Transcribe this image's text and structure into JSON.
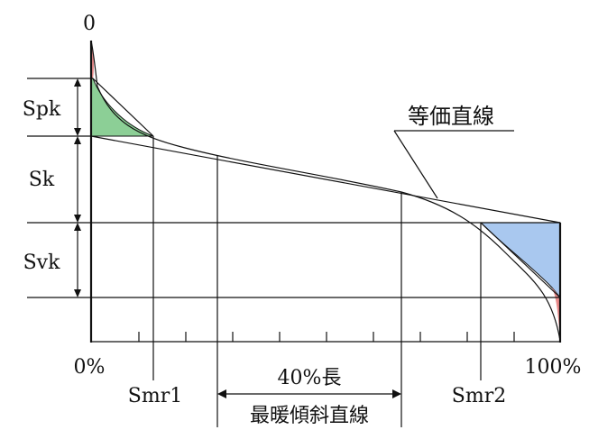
{
  "labels": {
    "top_zero": "0",
    "spk": "Spk",
    "sk": "Sk",
    "svk": "Svk",
    "equivalent_line": "等価直線",
    "x_start": "0%",
    "x_end": "100%",
    "smr1": "Smr1",
    "smr2": "Smr2",
    "span_length": "40%長",
    "gentlest_slope_line": "最暖傾斜直線"
  },
  "colors": {
    "peak_fill_red": "#e88a8a",
    "peak_fill_green": "#8ccf96",
    "valley_fill_blue": "#a9c8ef",
    "line": "#111111"
  }
}
